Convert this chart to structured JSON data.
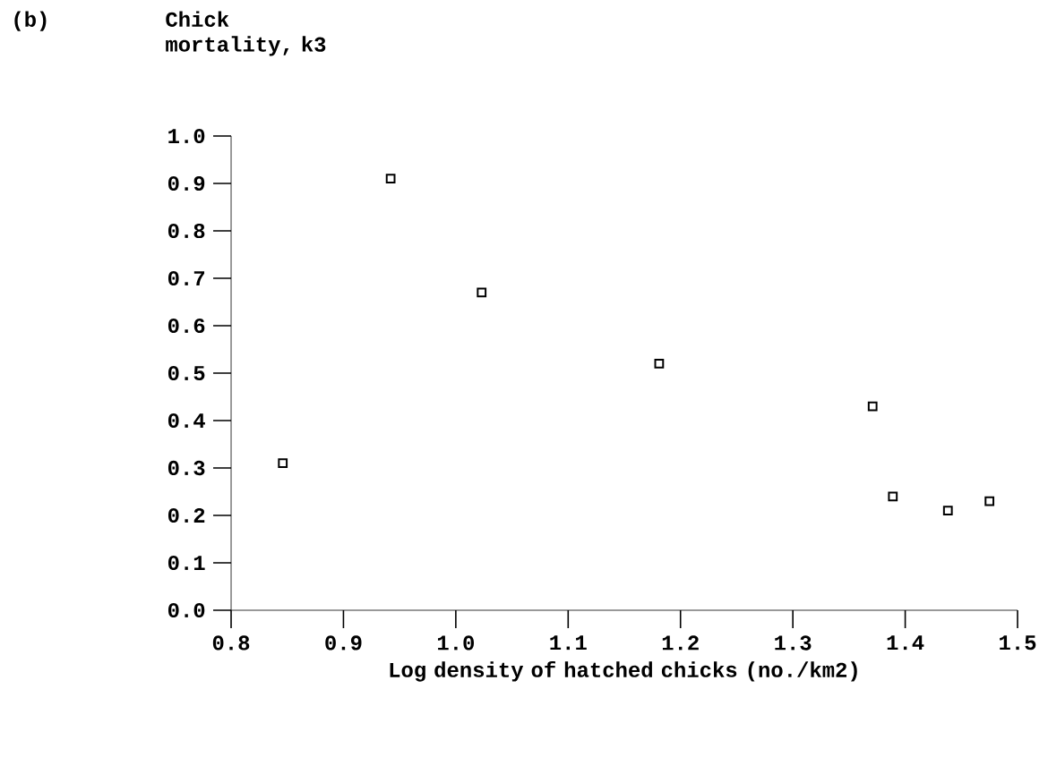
{
  "chart_data": {
    "type": "scatter",
    "title": "(b)",
    "ylabel": "Chick mortality, k3",
    "xlabel": "Log density of hatched chicks (no./km2)",
    "x": [
      0.846,
      0.942,
      1.023,
      1.181,
      1.371,
      1.389,
      1.438,
      1.475
    ],
    "values": [
      0.31,
      0.91,
      0.67,
      0.52,
      0.43,
      0.24,
      0.21,
      0.23
    ],
    "color": "#000000",
    "marker": "square",
    "xlim": [
      0.8,
      1.5
    ],
    "xticks": [
      0.8,
      0.9,
      {
        "value": 1,
        "label": "1.0"
      },
      1.1,
      1.2,
      1.3,
      1.4,
      1.5
    ],
    "ylim": [
      0,
      1
    ],
    "yticks": [
      {
        "value": 0,
        "label": "0.0"
      },
      0.1,
      0.2,
      0.3,
      0.4,
      0.5,
      0.6,
      0.7,
      0.8,
      0.9,
      {
        "value": 1,
        "label": "1.0"
      }
    ]
  }
}
